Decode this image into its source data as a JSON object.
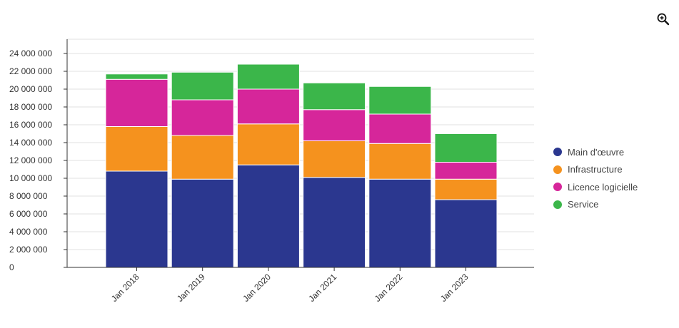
{
  "chart_data": {
    "type": "bar",
    "stacked": true,
    "categories": [
      "Jan 2018",
      "Jan 2019",
      "Jan 2020",
      "Jan 2021",
      "Jan 2022",
      "Jan 2023"
    ],
    "series": [
      {
        "name": "Main d'œuvre",
        "color": "#2b378f",
        "values": [
          10800000,
          9900000,
          11500000,
          10100000,
          9900000,
          7600000
        ]
      },
      {
        "name": "Infrastructure",
        "color": "#f5921e",
        "values": [
          5000000,
          4900000,
          4600000,
          4100000,
          4000000,
          2300000
        ]
      },
      {
        "name": "Licence logicielle",
        "color": "#d6269a",
        "values": [
          5300000,
          4000000,
          3900000,
          3500000,
          3300000,
          1900000
        ]
      },
      {
        "name": "Service",
        "color": "#3bb64a",
        "values": [
          600000,
          3100000,
          2800000,
          3000000,
          3100000,
          3200000
        ]
      }
    ],
    "yticks": [
      "0",
      "2 000 000",
      "4 000 000",
      "6 000 000",
      "8 000 000",
      "10 000 000",
      "12 000 000",
      "14 000 000",
      "16 000 000",
      "18 000 000",
      "20 000 000",
      "22 000 000",
      "24 000 000"
    ],
    "ylim": [
      0,
      25600000
    ],
    "xlabel": "",
    "ylabel": "",
    "legend_position": "right"
  },
  "toolbar": {
    "zoom_icon": "zoom-in-icon"
  }
}
